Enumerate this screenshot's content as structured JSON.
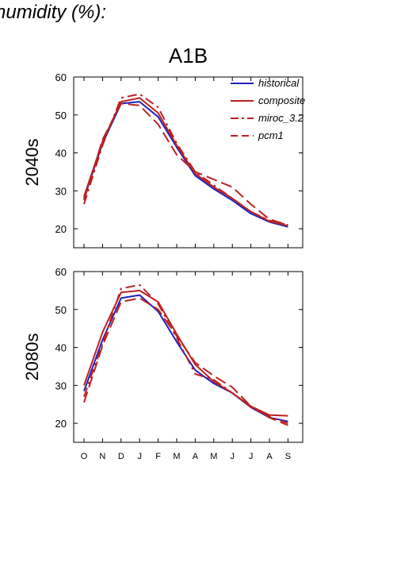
{
  "page_title": "humidity (%):",
  "scenario_title": "A1B",
  "colors": {
    "historical": "#2222bb",
    "model": "#bb2222",
    "axis": "#000000"
  },
  "chart_data": [
    {
      "type": "line",
      "row_label": "2040s",
      "categories": [
        "O",
        "N",
        "D",
        "J",
        "F",
        "M",
        "A",
        "M",
        "J",
        "J",
        "A",
        "S"
      ],
      "ylim": [
        15,
        60
      ],
      "yticks": [
        20,
        30,
        40,
        50,
        60
      ],
      "legend_position": "top-right",
      "series": [
        {
          "name": "historical",
          "style": "solid",
          "color": "#2222bb",
          "values": [
            28,
            42.5,
            53,
            53.5,
            49.5,
            41.5,
            34,
            30.5,
            27.5,
            24,
            21.8,
            20.5
          ]
        },
        {
          "name": "composite",
          "style": "solid",
          "color": "#bb2222",
          "values": [
            28.5,
            43,
            53.5,
            54.5,
            50.5,
            42,
            34.5,
            31,
            28,
            24.5,
            22,
            20.8
          ]
        },
        {
          "name": "miroc_3.2",
          "style": "dashdot",
          "color": "#bb2222",
          "values": [
            26.5,
            42,
            54.5,
            55.5,
            52,
            42.5,
            35,
            31.5,
            28,
            24.5,
            22.2,
            21
          ]
        },
        {
          "name": "pcm1",
          "style": "dashed",
          "color": "#bb2222",
          "values": [
            27.5,
            43.5,
            53,
            52.5,
            47.5,
            39.5,
            35,
            33,
            31,
            26.5,
            22.5,
            21
          ]
        }
      ]
    },
    {
      "type": "line",
      "row_label": "2080s",
      "categories": [
        "O",
        "N",
        "D",
        "J",
        "F",
        "M",
        "A",
        "M",
        "J",
        "J",
        "A",
        "S"
      ],
      "ylim": [
        15,
        60
      ],
      "yticks": [
        20,
        30,
        40,
        50,
        60
      ],
      "series": [
        {
          "name": "historical",
          "style": "solid",
          "color": "#2222bb",
          "values": [
            28.5,
            42,
            53,
            53.8,
            49.5,
            41.5,
            34,
            30.5,
            28,
            24.2,
            21.5,
            20.5
          ]
        },
        {
          "name": "composite",
          "style": "solid",
          "color": "#bb2222",
          "values": [
            30,
            44,
            54.5,
            55,
            52,
            43.5,
            35.5,
            31,
            28,
            24.5,
            22.2,
            22
          ]
        },
        {
          "name": "miroc_3.2",
          "style": "dashdot",
          "color": "#bb2222",
          "values": [
            27,
            41,
            55.5,
            56.5,
            51.5,
            42.5,
            33,
            31.5,
            28,
            24.3,
            21.8,
            20
          ]
        },
        {
          "name": "pcm1",
          "style": "dashed",
          "color": "#bb2222",
          "values": [
            25.5,
            40.5,
            52,
            53,
            50,
            43,
            36,
            32.5,
            29.5,
            24.5,
            21.5,
            19.5
          ]
        }
      ]
    }
  ]
}
